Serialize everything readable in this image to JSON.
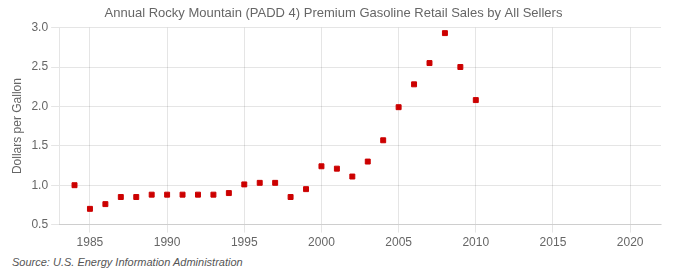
{
  "chart_data": {
    "type": "scatter",
    "title": "Annual Rocky Mountain (PADD 4) Premium Gasoline Retail Sales by All Sellers",
    "y_label": "Dollars per Gallon",
    "annotation": "Source: U.S. Energy Information Administration",
    "x": [
      1984,
      1985,
      1986,
      1987,
      1988,
      1989,
      1990,
      1991,
      1992,
      1993,
      1994,
      1995,
      1996,
      1997,
      1998,
      1999,
      2000,
      2001,
      2002,
      2003,
      2004,
      2005,
      2006,
      2007,
      2008,
      2009,
      2010
    ],
    "values": [
      1.0,
      0.7,
      0.76,
      0.85,
      0.85,
      0.88,
      0.88,
      0.88,
      0.88,
      0.88,
      0.9,
      1.01,
      1.03,
      1.03,
      0.85,
      0.95,
      1.24,
      1.21,
      1.11,
      1.3,
      1.57,
      1.99,
      2.28,
      2.55,
      2.93,
      2.5,
      2.08
    ],
    "color": "#cc0000",
    "marker": "square",
    "xlim": [
      1983,
      2022
    ],
    "xticks": [
      1985,
      1990,
      1995,
      2000,
      2005,
      2010,
      2015,
      2020
    ],
    "ylim": [
      0.5,
      3.0
    ],
    "yticks": [
      0.5,
      {
        "value": 1.0,
        "label": "1.0"
      },
      1.5,
      {
        "value": 2.0,
        "label": "2.0"
      },
      2.5,
      {
        "value": 3.0,
        "label": "3.0"
      }
    ],
    "grid": true,
    "legend": false
  }
}
